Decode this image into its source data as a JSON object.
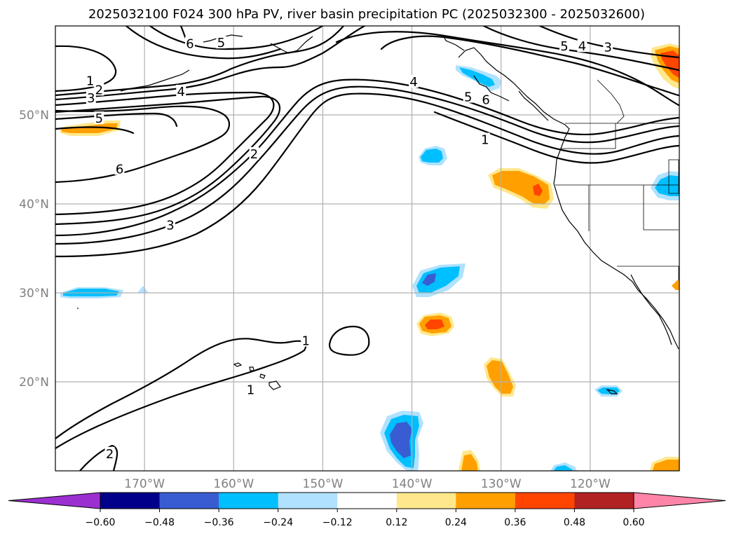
{
  "chart_data": {
    "type": "contour-map",
    "title": "2025032100 F024 300 hPa PV, river basin precipitation PC (2025032300 - 2025032600)",
    "xlim": [
      -180,
      -110
    ],
    "ylim": [
      10,
      60
    ],
    "x_ticks": [
      {
        "value": -170,
        "label": "170°W"
      },
      {
        "value": -160,
        "label": "160°W"
      },
      {
        "value": -150,
        "label": "150°W"
      },
      {
        "value": -140,
        "label": "140°W"
      },
      {
        "value": -130,
        "label": "130°W"
      },
      {
        "value": -120,
        "label": "120°W"
      }
    ],
    "y_ticks": [
      {
        "value": 20,
        "label": "20°N"
      },
      {
        "value": 30,
        "label": "30°N"
      },
      {
        "value": 40,
        "label": "40°N"
      },
      {
        "value": 50,
        "label": "50°N"
      }
    ],
    "grid": true,
    "contour_labels": [
      {
        "text": "6",
        "lon": -164.9,
        "lat": 58.0
      },
      {
        "text": "5",
        "lon": -161.4,
        "lat": 58.1
      },
      {
        "text": "1",
        "lon": -176.1,
        "lat": 53.8
      },
      {
        "text": "2",
        "lon": -175.1,
        "lat": 52.8
      },
      {
        "text": "3",
        "lon": -176.0,
        "lat": 51.9
      },
      {
        "text": "4",
        "lon": -165.9,
        "lat": 52.6
      },
      {
        "text": "5",
        "lon": -175.1,
        "lat": 49.6
      },
      {
        "text": "6",
        "lon": -172.8,
        "lat": 43.9
      },
      {
        "text": "2",
        "lon": -157.7,
        "lat": 45.6
      },
      {
        "text": "3",
        "lon": -167.1,
        "lat": 37.6
      },
      {
        "text": "4",
        "lon": -139.8,
        "lat": 53.7
      },
      {
        "text": "5",
        "lon": -133.7,
        "lat": 52.0
      },
      {
        "text": "6",
        "lon": -131.7,
        "lat": 51.7
      },
      {
        "text": "1",
        "lon": -131.8,
        "lat": 47.2
      },
      {
        "text": "5",
        "lon": -122.9,
        "lat": 57.7
      },
      {
        "text": "4",
        "lon": -120.9,
        "lat": 57.7
      },
      {
        "text": "3",
        "lon": -118.0,
        "lat": 57.6
      },
      {
        "text": "1",
        "lon": -151.9,
        "lat": 24.6
      },
      {
        "text": "1",
        "lon": -158.1,
        "lat": 19.1
      },
      {
        "text": "2",
        "lon": -173.9,
        "lat": 11.9
      }
    ],
    "shaded_levels": [
      -0.6,
      -0.48,
      -0.36,
      -0.24,
      -0.12,
      0.12,
      0.24,
      0.36,
      0.48,
      0.6
    ],
    "colorbar": {
      "tick_labels": [
        "−0.60",
        "−0.48",
        "−0.36",
        "−0.24",
        "−0.12",
        "0.12",
        "0.24",
        "0.36",
        "0.48",
        "0.60"
      ],
      "colors": [
        "#9b30d0",
        "#00008b",
        "#3a5cd2",
        "#00bfff",
        "#b0e2ff",
        "#ffffff",
        "#ffe88c",
        "#ffa000",
        "#ff4500",
        "#b22222",
        "#ff85a8"
      ],
      "extend": "both"
    }
  }
}
